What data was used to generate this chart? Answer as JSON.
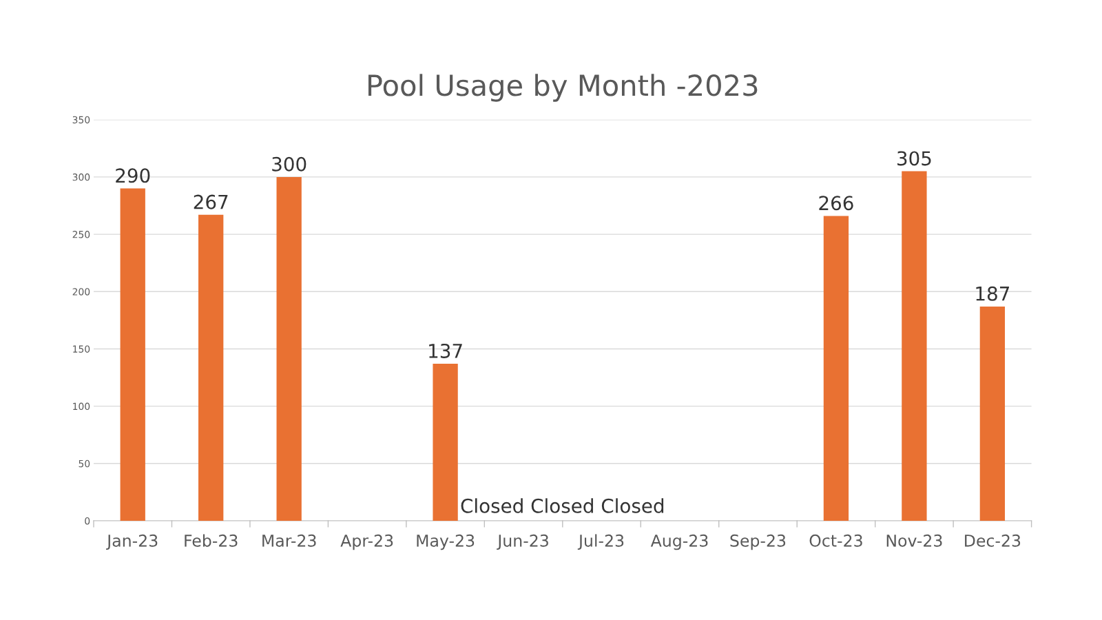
{
  "chart_data": {
    "type": "bar",
    "title": "Pool Usage by Month -2023",
    "categories": [
      "Jan-23",
      "Feb-23",
      "Mar-23",
      "Apr-23",
      "May-23",
      "Jun-23",
      "Jul-23",
      "Aug-23",
      "Sep-23",
      "Oct-23",
      "Nov-23",
      "Dec-23"
    ],
    "values": [
      290,
      267,
      300,
      null,
      137,
      null,
      null,
      null,
      null,
      266,
      305,
      187
    ],
    "color": "#e97132",
    "ylim": [
      0,
      350
    ],
    "yticks": [
      0,
      50,
      100,
      150,
      200,
      250,
      300,
      350
    ],
    "grid": "y",
    "data_labels": true,
    "legend": false,
    "annotations": [
      "Closed Closed Closed"
    ]
  }
}
